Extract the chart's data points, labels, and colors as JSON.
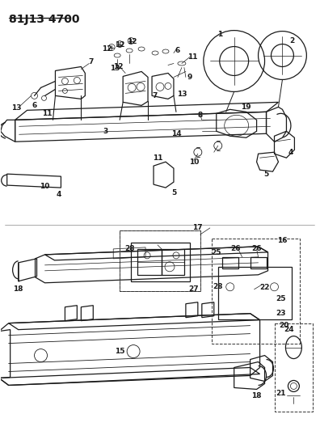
{
  "title": "81J13 4700",
  "bg_color": "#ffffff",
  "fg_color": "#1a1a1a",
  "lw": 0.9,
  "title_fontsize": 10,
  "label_fontsize": 6.5
}
